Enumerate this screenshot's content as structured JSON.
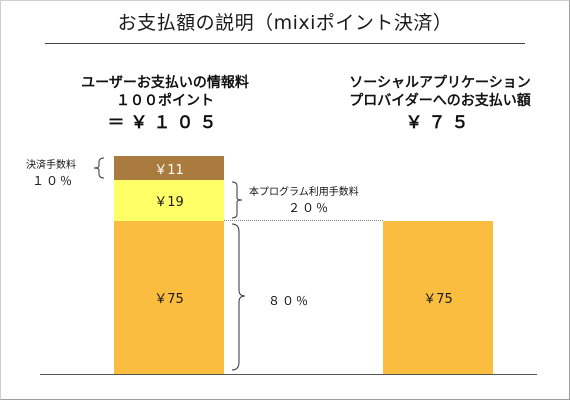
{
  "title": "お支払額の説明（mixiポイント決済）",
  "left": {
    "heading_line1": "ユーザーお支払いの情報料",
    "heading_line2": "１００ポイント",
    "total": "＝￥１０５",
    "segments": [
      {
        "label": "￥11",
        "value": 11,
        "color": "#a97b3f"
      },
      {
        "label": "￥19",
        "value": 19,
        "color": "#ffff66"
      },
      {
        "label": "￥75",
        "value": 75,
        "color": "#fbbd3f"
      }
    ]
  },
  "right": {
    "heading_line1": "ソーシャルアプリケーション",
    "heading_line2": "プロバイダーへのお支払い額",
    "total": "￥７５",
    "segments": [
      {
        "label": "￥75",
        "value": 75,
        "color": "#fbbd3f"
      }
    ]
  },
  "annotations": {
    "settlement_fee_label": "決済手数料",
    "settlement_fee_pct": "１０％",
    "program_fee_label": "本プログラム利用手数料",
    "program_fee_pct": "２０％",
    "provider_pct": "８０％"
  }
}
